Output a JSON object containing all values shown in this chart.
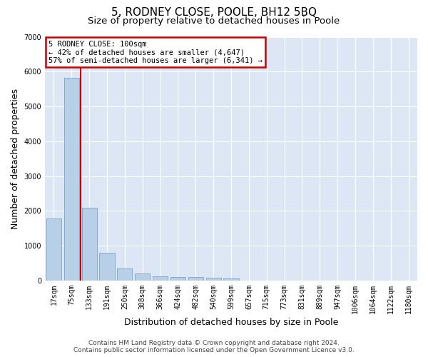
{
  "title": "5, RODNEY CLOSE, POOLE, BH12 5BQ",
  "subtitle": "Size of property relative to detached houses in Poole",
  "xlabel": "Distribution of detached houses by size in Poole",
  "ylabel": "Number of detached properties",
  "footer_line1": "Contains HM Land Registry data © Crown copyright and database right 2024.",
  "footer_line2": "Contains public sector information licensed under the Open Government Licence v3.0.",
  "categories": [
    "17sqm",
    "75sqm",
    "133sqm",
    "191sqm",
    "250sqm",
    "308sqm",
    "366sqm",
    "424sqm",
    "482sqm",
    "540sqm",
    "599sqm",
    "657sqm",
    "715sqm",
    "773sqm",
    "831sqm",
    "889sqm",
    "947sqm",
    "1006sqm",
    "1064sqm",
    "1122sqm",
    "1180sqm"
  ],
  "values": [
    1780,
    5820,
    2080,
    800,
    340,
    200,
    120,
    110,
    100,
    80,
    70,
    0,
    0,
    0,
    0,
    0,
    0,
    0,
    0,
    0,
    0
  ],
  "bar_color": "#b8cfe8",
  "bar_edgecolor": "#6699cc",
  "plot_background": "#dde6f4",
  "ylim_max": 7000,
  "yticks": [
    0,
    1000,
    2000,
    3000,
    4000,
    5000,
    6000,
    7000
  ],
  "vline_x": 1.5,
  "vline_color": "#cc0000",
  "annotation_line1": "5 RODNEY CLOSE: 100sqm",
  "annotation_line2": "← 42% of detached houses are smaller (4,647)",
  "annotation_line3": "57% of semi-detached houses are larger (6,341) →",
  "annotation_box_facecolor": "#ffffff",
  "annotation_box_edgecolor": "#cc0000",
  "grid_color": "#ffffff",
  "title_fontsize": 11,
  "subtitle_fontsize": 9.5,
  "axis_label_fontsize": 9,
  "tick_fontsize": 7,
  "annotation_fontsize": 7.5,
  "footer_fontsize": 6.5
}
